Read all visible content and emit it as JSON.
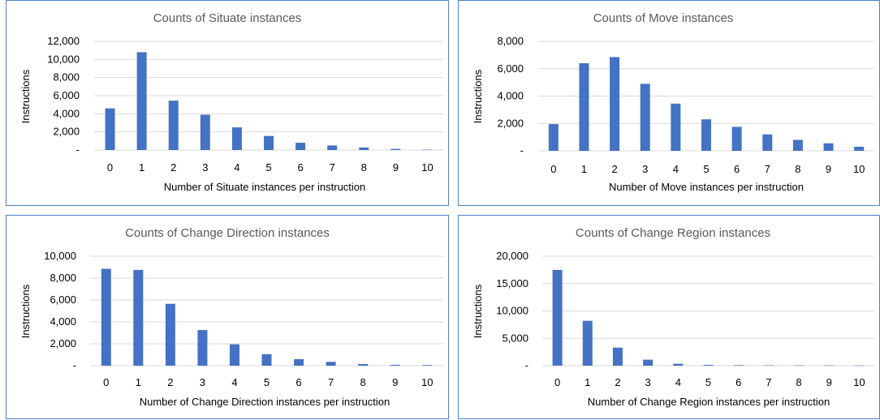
{
  "bar_color": "#4472c4",
  "grid_color": "#d9d9d9",
  "chart_data": [
    {
      "type": "bar",
      "title": "Counts of Situate instances",
      "xlabel": "Number of Situate instances per instruction",
      "ylabel": "Instructions",
      "categories": [
        "0",
        "1",
        "2",
        "3",
        "4",
        "5",
        "6",
        "7",
        "8",
        "9",
        "10"
      ],
      "values": [
        4600,
        10800,
        5450,
        3900,
        2500,
        1550,
        800,
        500,
        280,
        120,
        40
      ],
      "ylim": [
        0,
        12000
      ],
      "yticks": [
        0,
        2000,
        4000,
        6000,
        8000,
        10000,
        12000
      ],
      "ytick_labels": [
        "-",
        "2,000",
        "4,000",
        "6,000",
        "8,000",
        "10,000",
        "12,000"
      ],
      "grid": true
    },
    {
      "type": "bar",
      "title": "Counts of Move instances",
      "xlabel": "Number of Move instances per instruction",
      "ylabel": "Instructions",
      "categories": [
        "0",
        "1",
        "2",
        "3",
        "4",
        "5",
        "6",
        "7",
        "8",
        "9",
        "10"
      ],
      "values": [
        1950,
        6400,
        6850,
        4900,
        3450,
        2300,
        1750,
        1200,
        800,
        550,
        300
      ],
      "ylim": [
        0,
        8000
      ],
      "yticks": [
        0,
        2000,
        4000,
        6000,
        8000
      ],
      "ytick_labels": [
        "-",
        "2,000",
        "4,000",
        "6,000",
        "8,000"
      ],
      "grid": true
    },
    {
      "type": "bar",
      "title": "Counts of Change Direction instances",
      "xlabel": "Number of Change Direction instances per instruction",
      "ylabel": "Instructions",
      "categories": [
        "0",
        "1",
        "2",
        "3",
        "4",
        "5",
        "6",
        "7",
        "8",
        "9",
        "10"
      ],
      "values": [
        8850,
        8750,
        5650,
        3250,
        1950,
        1050,
        600,
        350,
        150,
        80,
        60
      ],
      "ylim": [
        0,
        10000
      ],
      "yticks": [
        0,
        2000,
        4000,
        6000,
        8000,
        10000
      ],
      "ytick_labels": [
        "-",
        "2,000",
        "4,000",
        "6,000",
        "8,000",
        "10,000"
      ],
      "grid": true
    },
    {
      "type": "bar",
      "title": "Counts of Change Region instances",
      "xlabel": "Number of Change Region instances per instruction",
      "ylabel": "Instructions",
      "categories": [
        "0",
        "1",
        "2",
        "3",
        "4",
        "5",
        "6",
        "7",
        "8",
        "9",
        "10"
      ],
      "values": [
        17500,
        8200,
        3300,
        1100,
        350,
        150,
        100,
        80,
        60,
        50,
        40
      ],
      "ylim": [
        0,
        20000
      ],
      "yticks": [
        0,
        5000,
        10000,
        15000,
        20000
      ],
      "ytick_labels": [
        "-",
        "5,000",
        "10,000",
        "15,000",
        "20,000"
      ],
      "grid": true
    }
  ]
}
